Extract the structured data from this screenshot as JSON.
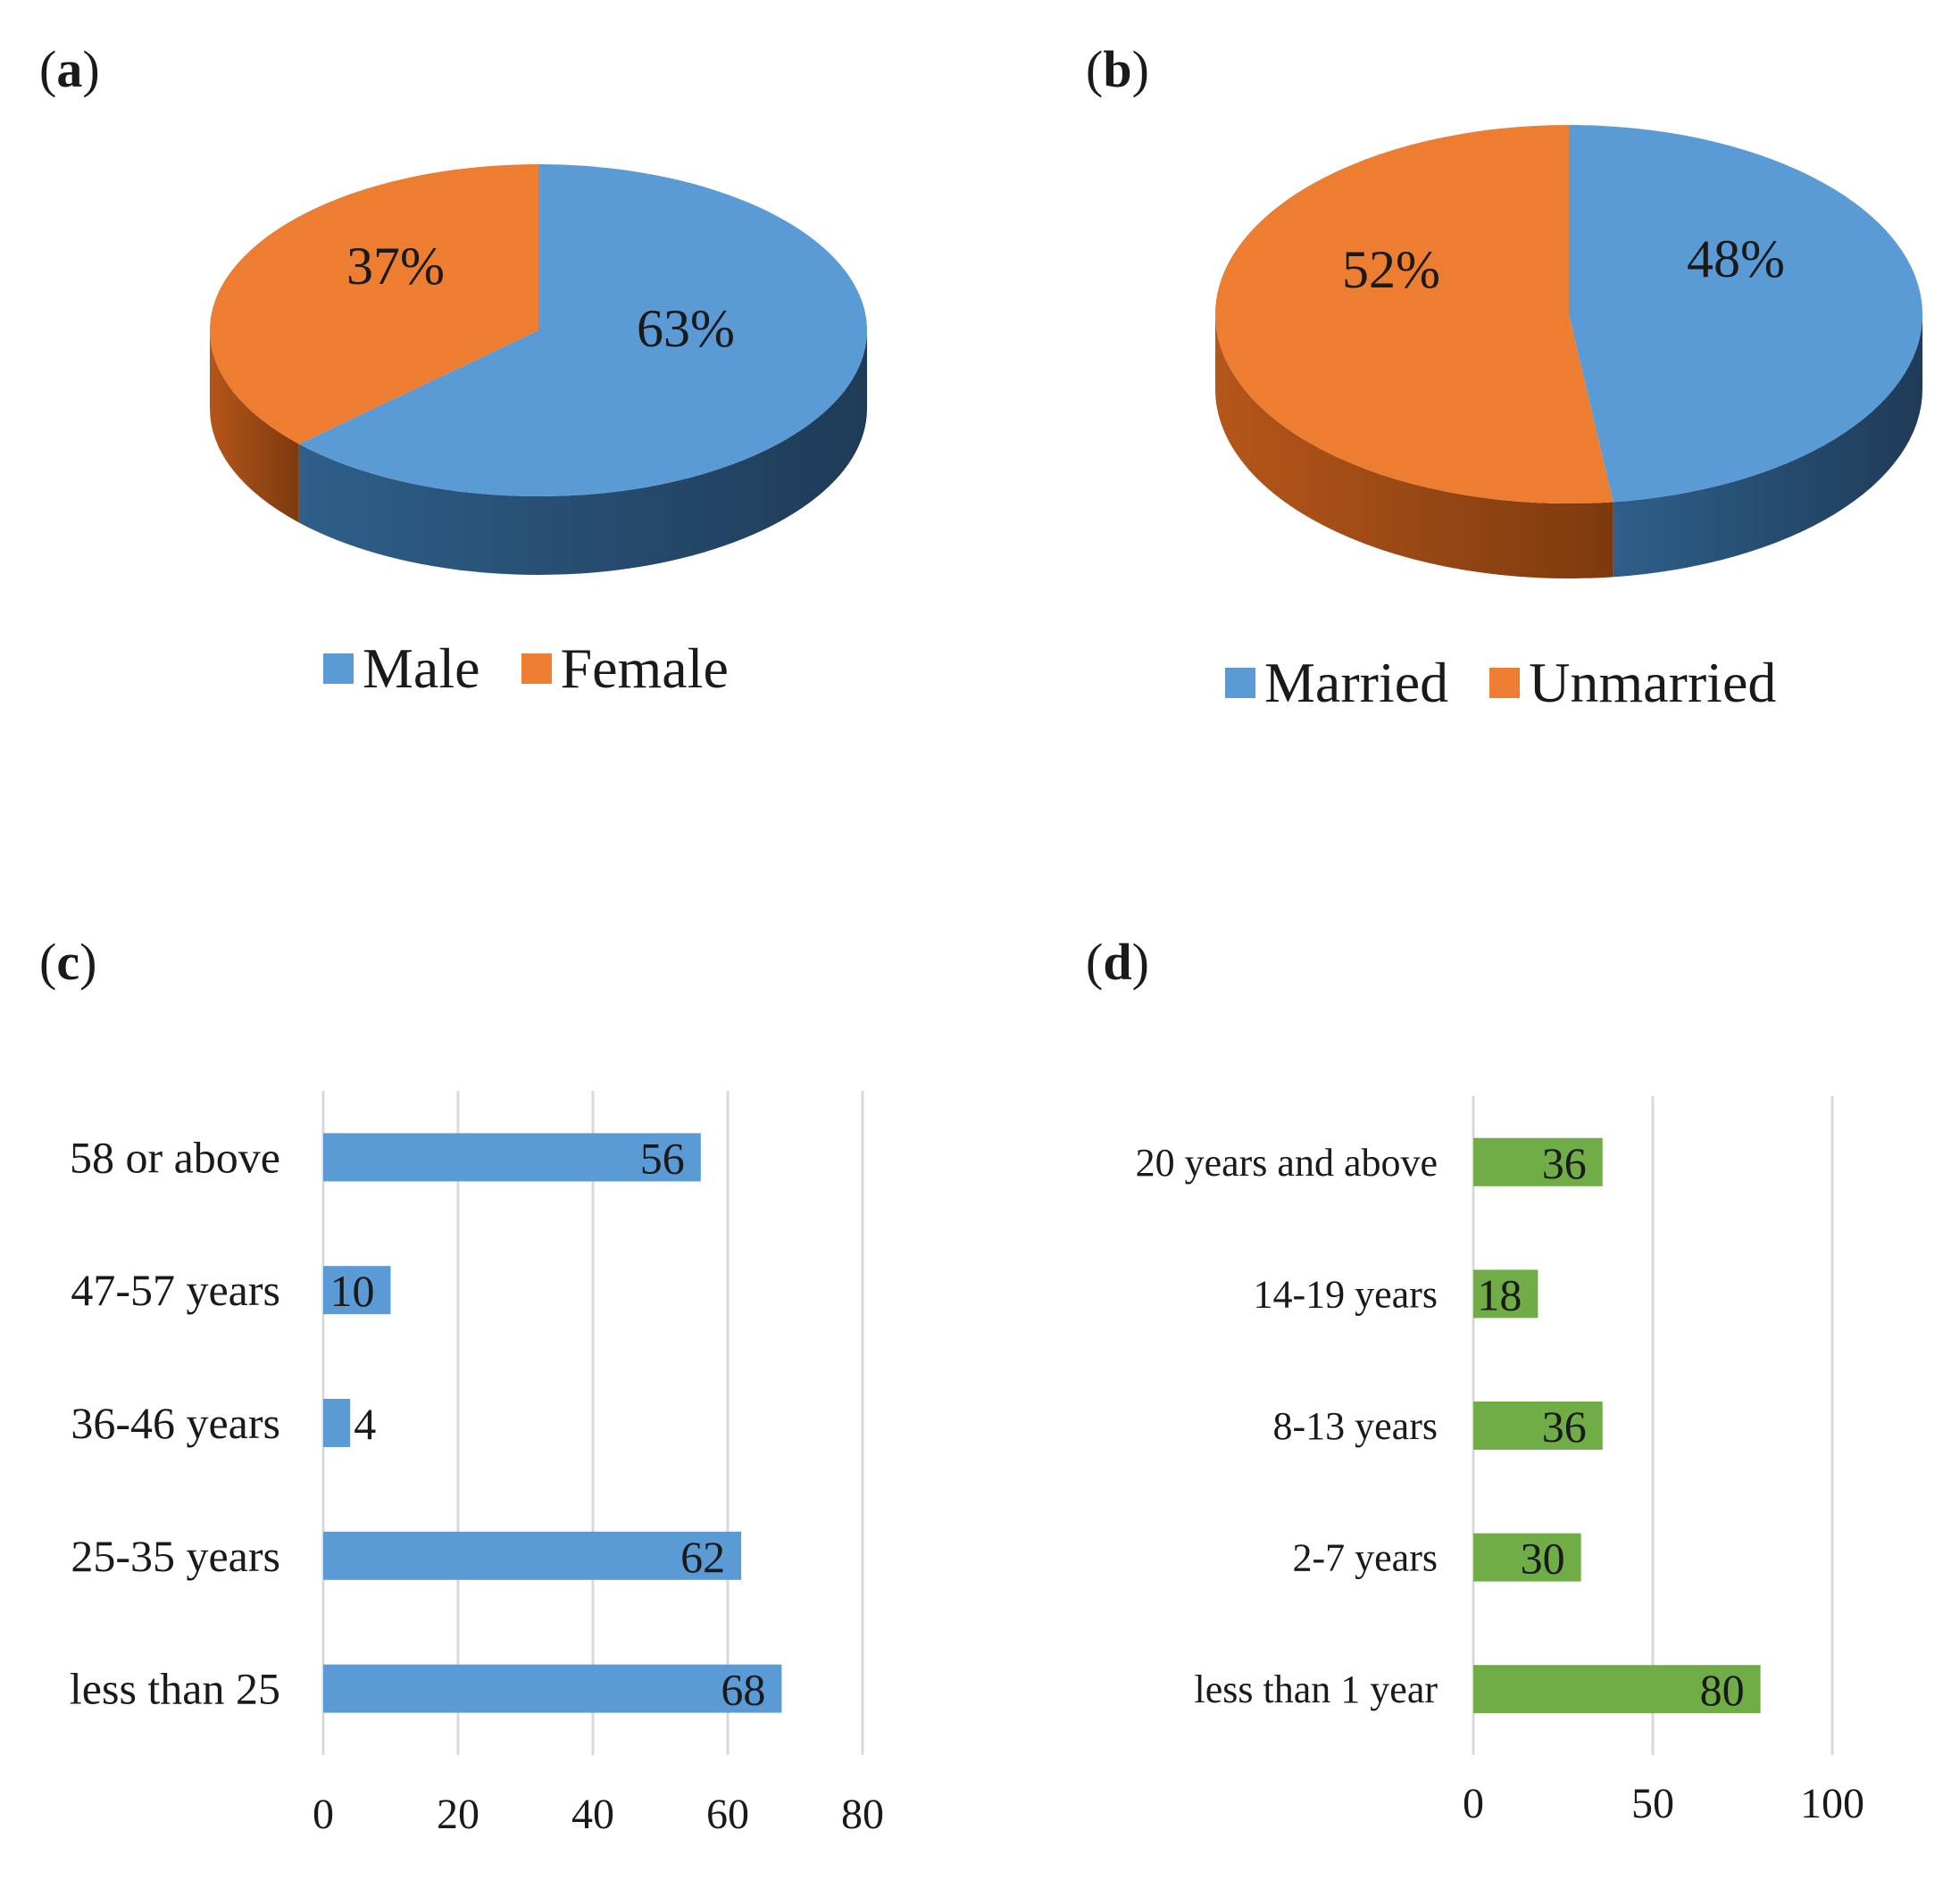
{
  "panels": {
    "a": {
      "open": "(",
      "letter": "a",
      "close": ")"
    },
    "b": {
      "open": "(",
      "letter": "b",
      "close": ")"
    },
    "c": {
      "open": "(",
      "letter": "c",
      "close": ")"
    },
    "d": {
      "open": "(",
      "letter": "d",
      "close": ")"
    }
  },
  "colors": {
    "blue": "#5b9bd5",
    "blue_side": "#2e5f8a",
    "blue_side_dark": "#1f3b57",
    "orange": "#ed7d31",
    "orange_side": "#b5561a",
    "orange_side_dark": "#7d3a0f",
    "green": "#70ad47",
    "grid": "#d9d9d9",
    "text": "#1a1a1a"
  },
  "chart_data": [
    {
      "id": "a",
      "type": "pie",
      "style": "3d",
      "categories": [
        "Male",
        "Female"
      ],
      "values": [
        63,
        37
      ],
      "value_labels": [
        "63%",
        "37%"
      ],
      "colors": [
        "#5b9bd5",
        "#ed7d31"
      ],
      "legend": [
        "Male",
        "Female"
      ],
      "legend_position": "bottom"
    },
    {
      "id": "b",
      "type": "pie",
      "style": "3d",
      "categories": [
        "Married",
        "Unmarried"
      ],
      "values": [
        48,
        52
      ],
      "value_labels": [
        "48%",
        "52%"
      ],
      "colors": [
        "#5b9bd5",
        "#ed7d31"
      ],
      "legend": [
        "Married",
        "Unmarried"
      ],
      "legend_position": "bottom"
    },
    {
      "id": "c",
      "type": "bar",
      "orientation": "horizontal",
      "categories": [
        "58 or above",
        "47-57 years",
        "36-46 years",
        "25-35 years",
        "less than 25"
      ],
      "values": [
        56,
        10,
        4,
        62,
        68
      ],
      "xlim": [
        0,
        80
      ],
      "xticks": [
        0,
        20,
        40,
        60,
        80
      ],
      "grid": true,
      "color": "#5b9bd5"
    },
    {
      "id": "d",
      "type": "bar",
      "orientation": "horizontal",
      "categories": [
        "20 years and above",
        "14-19 years",
        "8-13 years",
        "2-7 years",
        "less than 1 year"
      ],
      "values": [
        36,
        18,
        36,
        30,
        80
      ],
      "xlim": [
        0,
        100
      ],
      "xticks": [
        0,
        50,
        100
      ],
      "grid": true,
      "color": "#70ad47"
    }
  ]
}
